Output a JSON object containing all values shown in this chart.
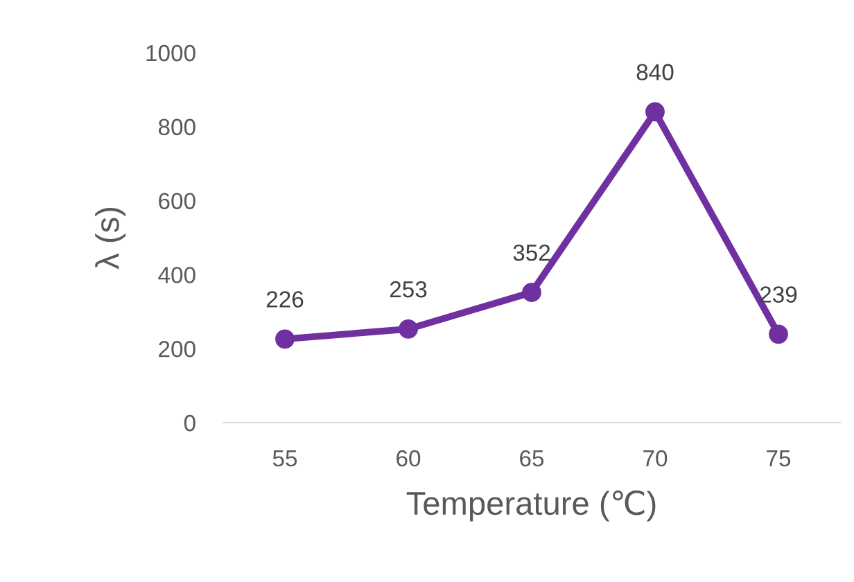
{
  "chart_data": {
    "type": "line",
    "xlabel": "Temperature (℃)",
    "ylabel": "λ (s)",
    "categories": [
      "55",
      "60",
      "65",
      "70",
      "75"
    ],
    "series": [
      {
        "color": "#7030a0",
        "values": [
          226,
          253,
          352,
          840,
          239
        ]
      }
    ],
    "ylim": [
      0,
      1000
    ],
    "yticks": [
      0,
      200,
      400,
      600,
      800,
      1000
    ],
    "grid": false,
    "legend": false,
    "marker": "circle",
    "line_style": "solid",
    "data_labels": true
  }
}
